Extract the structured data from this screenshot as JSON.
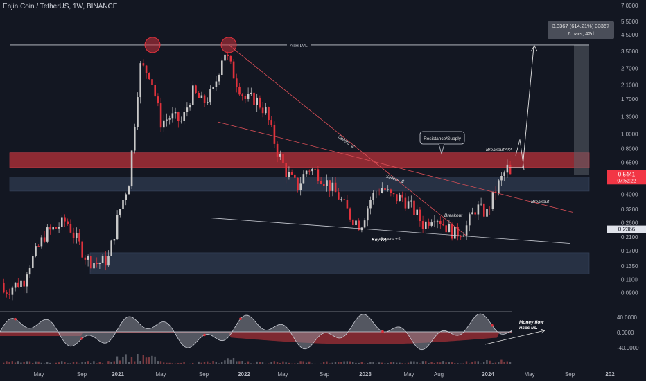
{
  "header": {
    "title": "Enjin Coin / TetherUS, 1W, BINANCE"
  },
  "colors": {
    "background": "#131722",
    "up_candle": "#c8c8c8",
    "down_candle": "#e0323c",
    "supply_zone": "#b8323a",
    "demand_zone": "#2a3448",
    "last_price": "#f23645"
  },
  "chart_data": [
    {
      "type": "candlestick",
      "scale": "log",
      "ylim": [
        0.075,
        7.0
      ],
      "y_ticks": [
        "7.0000",
        "5.5000",
        "4.5000",
        "3.5000",
        "2.7000",
        "2.1000",
        "1.7000",
        "1.3000",
        "1.0000",
        "0.8000",
        "0.6500",
        "0.5000",
        "0.4000",
        "0.3200",
        "0.2600",
        "0.2100",
        "0.1700",
        "0.1350",
        "0.1100",
        "0.0900"
      ],
      "x_ticks": [
        "May",
        "Sep",
        "2021",
        "May",
        "Sep",
        "2022",
        "May",
        "Sep",
        "2023",
        "May",
        "Aug",
        "2024",
        "May",
        "Sep",
        "202"
      ],
      "price_labels": [
        {
          "value": "0.5441",
          "sub": "07:52:22",
          "kind": "last-price"
        },
        {
          "value": "0.2366",
          "kind": "horizontal-line"
        }
      ],
      "weekly_close_path": [
        [
          "2020-04",
          0.12
        ],
        [
          "2020-05",
          0.16
        ],
        [
          "2020-06",
          0.22
        ],
        [
          "2020-07",
          0.24
        ],
        [
          "2020-08",
          0.27
        ],
        [
          "2020-09",
          0.2
        ],
        [
          "2020-10",
          0.15
        ],
        [
          "2020-11",
          0.14
        ],
        [
          "2020-12",
          0.15
        ],
        [
          "2021-01",
          0.3
        ],
        [
          "2021-02",
          0.5
        ],
        [
          "2021-03",
          2.8
        ],
        [
          "2021-04",
          2.5
        ],
        [
          "2021-05",
          1.2
        ],
        [
          "2021-06",
          1.3
        ],
        [
          "2021-07",
          1.2
        ],
        [
          "2021-08",
          1.9
        ],
        [
          "2021-09",
          1.6
        ],
        [
          "2021-10",
          1.9
        ],
        [
          "2021-11",
          3.6
        ],
        [
          "2021-12",
          2.4
        ],
        [
          "2022-01",
          1.7
        ],
        [
          "2022-02",
          1.7
        ],
        [
          "2022-03",
          1.4
        ],
        [
          "2022-04",
          0.8
        ],
        [
          "2022-05",
          0.55
        ],
        [
          "2022-06",
          0.45
        ],
        [
          "2022-07",
          0.6
        ],
        [
          "2022-08",
          0.55
        ],
        [
          "2022-09",
          0.46
        ],
        [
          "2022-10",
          0.38
        ],
        [
          "2022-11",
          0.29
        ],
        [
          "2022-12",
          0.25
        ],
        [
          "2023-01",
          0.38
        ],
        [
          "2023-02",
          0.45
        ],
        [
          "2023-03",
          0.38
        ],
        [
          "2023-04",
          0.38
        ],
        [
          "2023-05",
          0.32
        ],
        [
          "2023-06",
          0.25
        ],
        [
          "2023-07",
          0.3
        ],
        [
          "2023-08",
          0.25
        ],
        [
          "2023-09",
          0.22
        ],
        [
          "2023-10",
          0.24
        ],
        [
          "2023-11",
          0.33
        ],
        [
          "2023-12",
          0.3
        ],
        [
          "2024-01",
          0.45
        ],
        [
          "2024-02",
          0.6
        ],
        [
          "2024-03",
          0.54
        ]
      ],
      "zones": [
        {
          "name": "supply",
          "from": 0.6,
          "to": 0.75
        },
        {
          "name": "demand-upper",
          "from": 0.42,
          "to": 0.52
        },
        {
          "name": "demand-lower",
          "from": 0.12,
          "to": 0.165
        }
      ],
      "annotations": [
        {
          "text": "ATH LVL",
          "value": 3.85
        },
        {
          "text": "Resistance/Supply"
        },
        {
          "text": "Breakout???"
        },
        {
          "text": "Breakout"
        },
        {
          "text": "Breakout"
        },
        {
          "text": "Sellers -$"
        },
        {
          "text": "Sellers -$"
        },
        {
          "text": "Key lvl"
        },
        {
          "text": "Buyers +$"
        }
      ],
      "measure": {
        "line1": "3.3367 (614.21%) 33367",
        "line2": "6 bars, 42d"
      }
    },
    {
      "type": "area",
      "name": "oscillator",
      "y_ticks": [
        "40.0000",
        "0.0000",
        "-40.0000"
      ],
      "annotation": {
        "line1": "Money flow",
        "line2": "rises up."
      }
    }
  ]
}
